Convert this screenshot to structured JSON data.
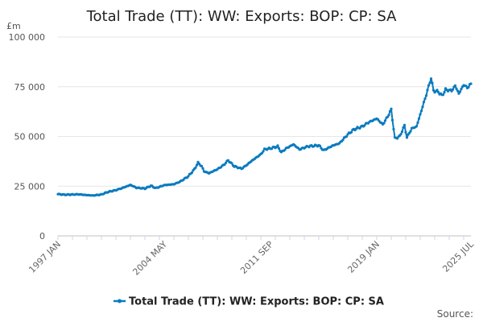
{
  "chart_data": {
    "type": "line",
    "title": "Total Trade (TT): WW: Exports: BOP: CP: SA",
    "ylabel": "£m",
    "ylim": [
      0,
      100000
    ],
    "yticks": [
      {
        "value": 0,
        "label": "0"
      },
      {
        "value": 25000,
        "label": "25 000"
      },
      {
        "value": 50000,
        "label": "50 000"
      },
      {
        "value": 75000,
        "label": "75 000"
      },
      {
        "value": 100000,
        "label": "100 000"
      }
    ],
    "xticks": [
      {
        "value": "1997-01",
        "label": "1997 JAN"
      },
      {
        "value": "2004-05",
        "label": "2004 MAY"
      },
      {
        "value": "2011-09",
        "label": "2011 SEP"
      },
      {
        "value": "2019-01",
        "label": "2019 JAN"
      },
      {
        "value": "2025-07",
        "label": "2025 JUL"
      }
    ],
    "grid": true,
    "legend": "bottom",
    "color": "#0a7bbf",
    "series": [
      {
        "name": "Total Trade (TT): WW: Exports: BOP: CP: SA",
        "points": [
          [
            "1997-01",
            21000
          ],
          [
            "1997-06",
            20700
          ],
          [
            "1998-01",
            20800
          ],
          [
            "1998-06",
            20900
          ],
          [
            "1999-01",
            20500
          ],
          [
            "1999-06",
            20300
          ],
          [
            "2000-01",
            20800
          ],
          [
            "2000-06",
            22000
          ],
          [
            "2001-01",
            23000
          ],
          [
            "2001-06",
            24000
          ],
          [
            "2002-01",
            25600
          ],
          [
            "2002-06",
            24200
          ],
          [
            "2003-01",
            23800
          ],
          [
            "2003-06",
            25200
          ],
          [
            "2003-10",
            24000
          ],
          [
            "2004-05",
            25500
          ],
          [
            "2005-01",
            26000
          ],
          [
            "2005-06",
            27200
          ],
          [
            "2006-01",
            30000
          ],
          [
            "2006-06",
            33500
          ],
          [
            "2006-09",
            36800
          ],
          [
            "2006-12",
            35000
          ],
          [
            "2007-02",
            32500
          ],
          [
            "2007-06",
            31500
          ],
          [
            "2008-01",
            33500
          ],
          [
            "2008-06",
            35500
          ],
          [
            "2008-10",
            38000
          ],
          [
            "2009-03",
            35000
          ],
          [
            "2009-09",
            33800
          ],
          [
            "2010-01",
            35500
          ],
          [
            "2010-06",
            38000
          ],
          [
            "2011-01",
            41000
          ],
          [
            "2011-04",
            43500
          ],
          [
            "2011-09",
            44000
          ],
          [
            "2012-03",
            45000
          ],
          [
            "2012-06",
            42000
          ],
          [
            "2012-10",
            44000
          ],
          [
            "2013-04",
            46000
          ],
          [
            "2013-09",
            43500
          ],
          [
            "2014-04",
            45000
          ],
          [
            "2015-01",
            45500
          ],
          [
            "2015-05",
            43000
          ],
          [
            "2016-01",
            45500
          ],
          [
            "2016-06",
            46500
          ],
          [
            "2017-01",
            51000
          ],
          [
            "2017-06",
            53500
          ],
          [
            "2018-01",
            55000
          ],
          [
            "2018-06",
            57000
          ],
          [
            "2019-01",
            59000
          ],
          [
            "2019-06",
            56000
          ],
          [
            "2019-10",
            60000
          ],
          [
            "2020-01",
            63500
          ],
          [
            "2020-04",
            49000
          ],
          [
            "2020-08",
            50000
          ],
          [
            "2020-12",
            55500
          ],
          [
            "2021-02",
            49500
          ],
          [
            "2021-06",
            54000
          ],
          [
            "2021-10",
            55000
          ],
          [
            "2022-02",
            63000
          ],
          [
            "2022-06",
            71000
          ],
          [
            "2022-10",
            79500
          ],
          [
            "2022-12",
            73000
          ],
          [
            "2023-04",
            72500
          ],
          [
            "2023-07",
            70500
          ],
          [
            "2023-10",
            73500
          ],
          [
            "2024-03",
            73000
          ],
          [
            "2024-06",
            75500
          ],
          [
            "2024-09",
            71500
          ],
          [
            "2025-01",
            76000
          ],
          [
            "2025-04",
            74500
          ],
          [
            "2025-07",
            76500
          ]
        ]
      }
    ],
    "source": "Source:"
  }
}
